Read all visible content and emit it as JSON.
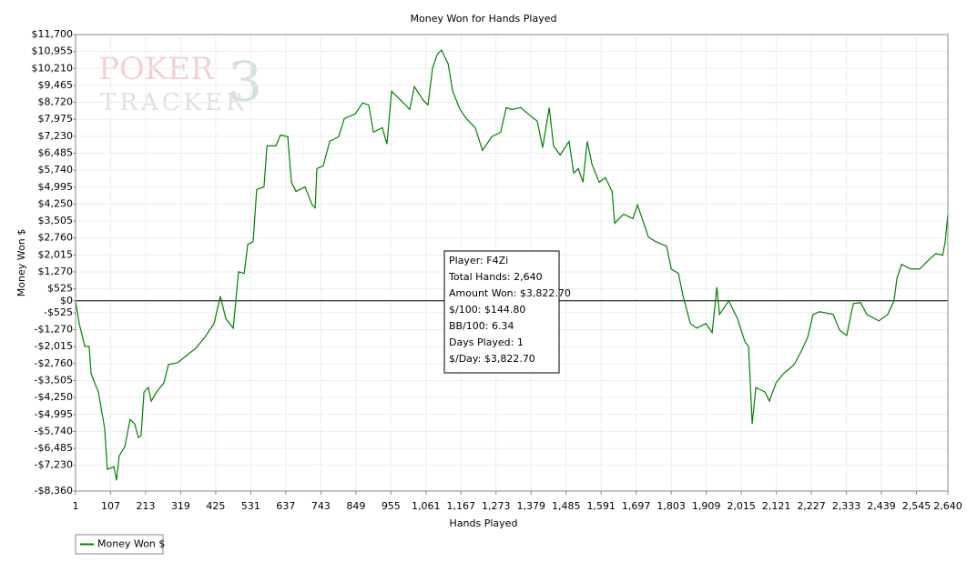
{
  "chart_data": {
    "type": "line",
    "title": "Money Won for Hands Played",
    "x_label": "Hands Played",
    "y_label": "Money Won $",
    "watermark": [
      "POKER",
      "TRACKER",
      "3"
    ],
    "tooltip": [
      "Player: F4Zi",
      "Total Hands: 2,640",
      "Amount Won: $3,822.70",
      "$/100: $144.80",
      "BB/100: 6.34",
      "Days Played: 1",
      "$/Day: $3,822.70"
    ],
    "grid": true,
    "legend": "bottom-left",
    "xlim": [
      1,
      2640
    ],
    "ylim": [
      -8360,
      11700
    ],
    "xticks": [
      1,
      107,
      213,
      319,
      425,
      531,
      637,
      743,
      849,
      955,
      {
        "value": 1061,
        "label": "1,061"
      },
      {
        "value": 1167,
        "label": "1,167"
      },
      {
        "value": 1273,
        "label": "1,273"
      },
      {
        "value": 1379,
        "label": "1,379"
      },
      {
        "value": 1485,
        "label": "1,485"
      },
      {
        "value": 1591,
        "label": "1,591"
      },
      {
        "value": 1697,
        "label": "1,697"
      },
      {
        "value": 1803,
        "label": "1,803"
      },
      {
        "value": 1909,
        "label": "1,909"
      },
      {
        "value": 2015,
        "label": "2,015"
      },
      {
        "value": 2121,
        "label": "2,121"
      },
      {
        "value": 2227,
        "label": "2,227"
      },
      {
        "value": 2333,
        "label": "2,333"
      },
      {
        "value": 2439,
        "label": "2,439"
      },
      {
        "value": 2545,
        "label": "2,545"
      },
      {
        "value": 2640,
        "label": "2,640"
      }
    ],
    "yticks": [
      {
        "value": 11700,
        "label": "$11,700"
      },
      {
        "value": 10955,
        "label": "$10,955"
      },
      {
        "value": 10210,
        "label": "$10,210"
      },
      {
        "value": 9465,
        "label": "$9,465"
      },
      {
        "value": 8720,
        "label": "$8,720"
      },
      {
        "value": 7975,
        "label": "$7,975"
      },
      {
        "value": 7230,
        "label": "$7,230"
      },
      {
        "value": 6485,
        "label": "$6,485"
      },
      {
        "value": 5740,
        "label": "$5,740"
      },
      {
        "value": 4995,
        "label": "$4,995"
      },
      {
        "value": 4250,
        "label": "$4,250"
      },
      {
        "value": 3505,
        "label": "$3,505"
      },
      {
        "value": 2760,
        "label": "$2,760"
      },
      {
        "value": 2015,
        "label": "$2,015"
      },
      {
        "value": 1270,
        "label": "$1,270"
      },
      {
        "value": 525,
        "label": "$525"
      },
      {
        "value": 0,
        "label": "$0"
      },
      {
        "value": -525,
        "label": "-$525"
      },
      {
        "value": -1270,
        "label": "-$1,270"
      },
      {
        "value": -2015,
        "label": "-$2,015"
      },
      {
        "value": -2760,
        "label": "-$2,760"
      },
      {
        "value": -3505,
        "label": "-$3,505"
      },
      {
        "value": -4250,
        "label": "-$4,250"
      },
      {
        "value": -4995,
        "label": "-$4,995"
      },
      {
        "value": -5740,
        "label": "-$5,740"
      },
      {
        "value": -6485,
        "label": "-$6,485"
      },
      {
        "value": -7230,
        "label": "-$7,230"
      },
      {
        "value": -8360,
        "label": "-$8,360"
      }
    ],
    "x": [
      1,
      12,
      29,
      42,
      48,
      59,
      70,
      89,
      97,
      117,
      125,
      133,
      150,
      166,
      180,
      191,
      199,
      208,
      221,
      230,
      246,
      268,
      282,
      310,
      337,
      365,
      392,
      420,
      439,
      456,
      478,
      494,
      511,
      522,
      538,
      549,
      571,
      580,
      607,
      621,
      643,
      654,
      668,
      695,
      717,
      726,
      731,
      750,
      770,
      797,
      814,
      847,
      869,
      888,
      902,
      929,
      943,
      957,
      985,
      1012,
      1026,
      1053,
      1067,
      1081,
      1095,
      1108,
      1128,
      1142,
      1164,
      1183,
      1210,
      1232,
      1260,
      1287,
      1304,
      1320,
      1348,
      1370,
      1398,
      1414,
      1434,
      1447,
      1467,
      1494,
      1508,
      1522,
      1536,
      1549,
      1563,
      1585,
      1604,
      1624,
      1632,
      1659,
      1687,
      1701,
      1720,
      1734,
      1756,
      1789,
      1803,
      1825,
      1839,
      1861,
      1880,
      1908,
      1927,
      1941,
      1949,
      1977,
      2004,
      2026,
      2037,
      2048,
      2059,
      2087,
      2100,
      2120,
      2142,
      2175,
      2197,
      2216,
      2232,
      2252,
      2293,
      2312,
      2334,
      2354,
      2376,
      2395,
      2431,
      2458,
      2477,
      2486,
      2500,
      2527,
      2555,
      2582,
      2604,
      2624,
      2632,
      2640
    ],
    "series": [
      {
        "name": "Money Won $",
        "color": "#008000",
        "values": [
          0,
          -1000,
          -2000,
          -2000,
          -3200,
          -3610,
          -4010,
          -5610,
          -7410,
          -7290,
          -7890,
          -6810,
          -6410,
          -5210,
          -5410,
          -6010,
          -5930,
          -4010,
          -3810,
          -4410,
          -4010,
          -3610,
          -2800,
          -2720,
          -2400,
          -2080,
          -1600,
          -1000,
          200,
          -800,
          -1200,
          1280,
          1200,
          2480,
          2600,
          4890,
          5010,
          6810,
          6810,
          7290,
          7210,
          5210,
          4810,
          5010,
          4210,
          4090,
          5810,
          5930,
          7010,
          7210,
          8010,
          8210,
          8690,
          8610,
          7410,
          7610,
          6890,
          9210,
          8810,
          8410,
          9410,
          8810,
          8610,
          10220,
          10820,
          11020,
          10420,
          9210,
          8410,
          8010,
          7610,
          6610,
          7210,
          7410,
          8490,
          8410,
          8490,
          8210,
          7890,
          6730,
          8490,
          6810,
          6410,
          7010,
          5610,
          5810,
          5210,
          7010,
          6010,
          5210,
          5410,
          4810,
          3410,
          3810,
          3610,
          4210,
          3410,
          2800,
          2600,
          2400,
          1400,
          1200,
          200,
          -1000,
          -1200,
          -1000,
          -1400,
          600,
          -600,
          0,
          -800,
          -1800,
          -2000,
          -5410,
          -3810,
          -4010,
          -4410,
          -3610,
          -3210,
          -2800,
          -2200,
          -1600,
          -600,
          -480,
          -600,
          -1280,
          -1520,
          -120,
          -80,
          -600,
          -880,
          -600,
          0,
          1000,
          1600,
          1400,
          1400,
          1800,
          2080,
          2000,
          2600,
          3822.7
        ]
      }
    ]
  }
}
